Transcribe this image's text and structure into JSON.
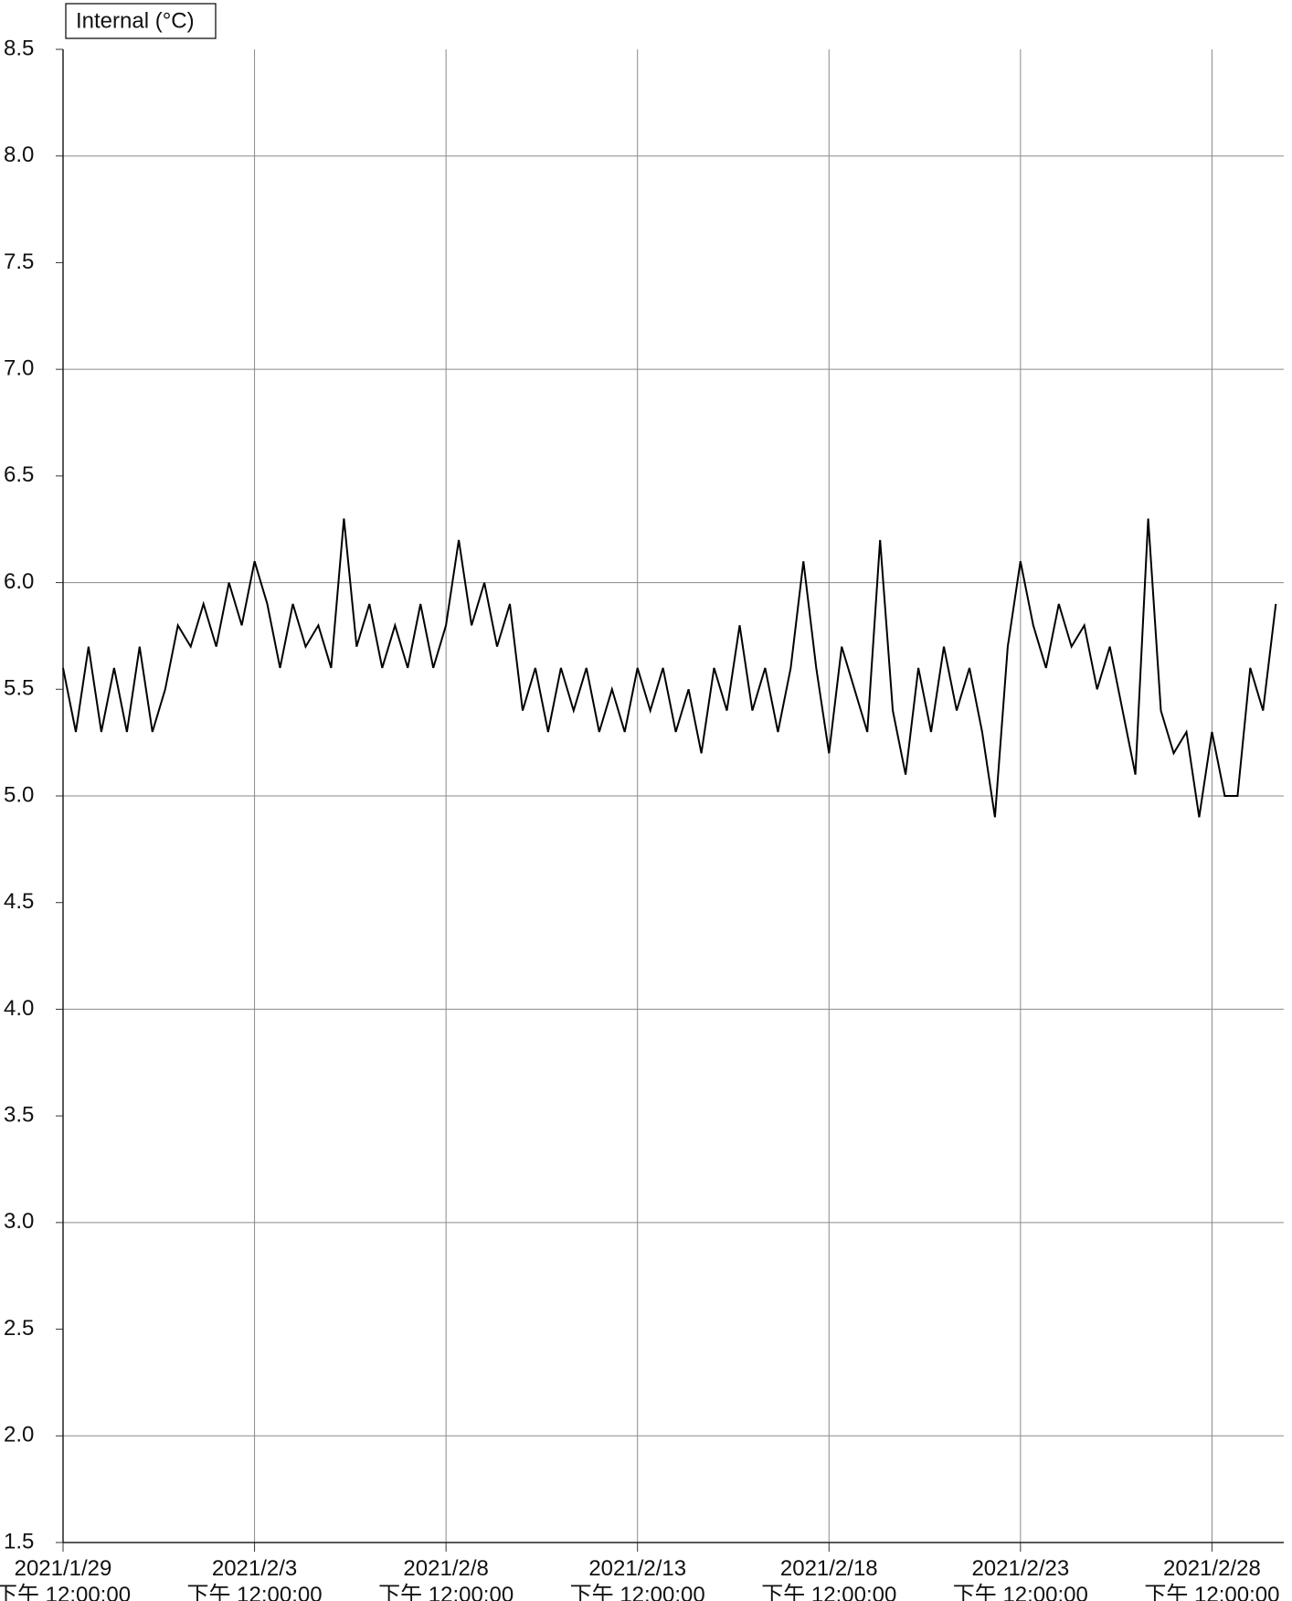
{
  "chart_data": {
    "type": "line",
    "x": [
      "2021-01-29 12:00",
      "2021-01-29 20:00",
      "2021-01-30 04:00",
      "2021-01-30 12:00",
      "2021-01-30 20:00",
      "2021-01-31 04:00",
      "2021-01-31 12:00",
      "2021-01-31 20:00",
      "2021-02-01 04:00",
      "2021-02-01 12:00",
      "2021-02-01 20:00",
      "2021-02-02 04:00",
      "2021-02-02 12:00",
      "2021-02-02 20:00",
      "2021-02-03 04:00",
      "2021-02-03 12:00",
      "2021-02-03 20:00",
      "2021-02-04 04:00",
      "2021-02-04 12:00",
      "2021-02-04 20:00",
      "2021-02-05 04:00",
      "2021-02-05 12:00",
      "2021-02-05 20:00",
      "2021-02-06 04:00",
      "2021-02-06 12:00",
      "2021-02-06 20:00",
      "2021-02-07 04:00",
      "2021-02-07 12:00",
      "2021-02-07 20:00",
      "2021-02-08 04:00",
      "2021-02-08 12:00",
      "2021-02-08 20:00",
      "2021-02-09 04:00",
      "2021-02-09 12:00",
      "2021-02-09 20:00",
      "2021-02-10 04:00",
      "2021-02-10 12:00",
      "2021-02-10 20:00",
      "2021-02-11 04:00",
      "2021-02-11 12:00",
      "2021-02-11 20:00",
      "2021-02-12 04:00",
      "2021-02-12 12:00",
      "2021-02-12 20:00",
      "2021-02-13 04:00",
      "2021-02-13 12:00",
      "2021-02-13 20:00",
      "2021-02-14 04:00",
      "2021-02-14 12:00",
      "2021-02-14 20:00",
      "2021-02-15 04:00",
      "2021-02-15 12:00",
      "2021-02-15 20:00",
      "2021-02-16 04:00",
      "2021-02-16 12:00",
      "2021-02-16 20:00",
      "2021-02-17 04:00",
      "2021-02-17 12:00",
      "2021-02-17 20:00",
      "2021-02-18 04:00",
      "2021-02-18 12:00",
      "2021-02-18 20:00",
      "2021-02-19 04:00",
      "2021-02-19 12:00",
      "2021-02-19 20:00",
      "2021-02-20 04:00",
      "2021-02-20 12:00",
      "2021-02-20 20:00",
      "2021-02-21 04:00",
      "2021-02-21 12:00",
      "2021-02-21 20:00",
      "2021-02-22 04:00",
      "2021-02-22 12:00",
      "2021-02-22 20:00",
      "2021-02-23 04:00",
      "2021-02-23 12:00",
      "2021-02-23 20:00",
      "2021-02-24 04:00",
      "2021-02-24 12:00",
      "2021-02-24 20:00",
      "2021-02-25 04:00",
      "2021-02-25 12:00",
      "2021-02-25 20:00",
      "2021-02-26 04:00",
      "2021-02-26 12:00",
      "2021-02-26 20:00",
      "2021-02-27 04:00",
      "2021-02-27 12:00",
      "2021-02-27 20:00",
      "2021-02-28 04:00",
      "2021-02-28 12:00",
      "2021-02-28 20:00",
      "2021-03-01 04:00",
      "2021-03-01 12:00",
      "2021-03-01 20:00",
      "2021-03-02 04:00"
    ],
    "series": [
      {
        "name": "Internal (°C)",
        "color": "#000000",
        "values": [
          5.6,
          5.3,
          5.7,
          5.3,
          5.6,
          5.3,
          5.7,
          5.3,
          5.5,
          5.8,
          5.7,
          5.9,
          5.7,
          6.0,
          5.8,
          6.1,
          5.9,
          5.6,
          5.9,
          5.7,
          5.8,
          5.6,
          6.3,
          5.7,
          5.9,
          5.6,
          5.8,
          5.6,
          5.9,
          5.6,
          5.8,
          6.2,
          5.8,
          6.0,
          5.7,
          5.9,
          5.4,
          5.6,
          5.3,
          5.6,
          5.4,
          5.6,
          5.3,
          5.5,
          5.3,
          5.6,
          5.4,
          5.6,
          5.3,
          5.5,
          5.2,
          5.6,
          5.4,
          5.8,
          5.4,
          5.6,
          5.3,
          5.6,
          6.1,
          5.6,
          5.2,
          5.7,
          5.5,
          5.3,
          6.2,
          5.4,
          5.1,
          5.6,
          5.3,
          5.7,
          5.4,
          5.6,
          5.3,
          4.9,
          5.7,
          6.1,
          5.8,
          5.6,
          5.9,
          5.7,
          5.8,
          5.5,
          5.7,
          5.4,
          5.1,
          6.3,
          5.4,
          5.2,
          5.3,
          4.9,
          5.3,
          5.0,
          5.0,
          5.6,
          5.4,
          5.9
        ]
      }
    ],
    "xlim": [
      "2021-01-29 12:00",
      "2021-03-02 09:00"
    ],
    "xticks": [
      {
        "value": "2021-01-29 12:00",
        "label": [
          "2021/1/29",
          "下午 12:00:00"
        ]
      },
      {
        "value": "2021-02-03 12:00",
        "label": [
          "2021/2/3",
          "下午 12:00:00"
        ]
      },
      {
        "value": "2021-02-08 12:00",
        "label": [
          "2021/2/8",
          "下午 12:00:00"
        ]
      },
      {
        "value": "2021-02-13 12:00",
        "label": [
          "2021/2/13",
          "下午 12:00:00"
        ]
      },
      {
        "value": "2021-02-18 12:00",
        "label": [
          "2021/2/18",
          "下午 12:00:00"
        ]
      },
      {
        "value": "2021-02-23 12:00",
        "label": [
          "2021/2/23",
          "下午 12:00:00"
        ]
      },
      {
        "value": "2021-02-28 12:00",
        "label": [
          "2021/2/28",
          "下午 12:00:00"
        ]
      }
    ],
    "ylim": [
      1.5,
      8.5
    ],
    "yticks": [
      {
        "value": 1.5,
        "label": "1.5"
      },
      {
        "value": 2,
        "label": "2.0"
      },
      {
        "value": 2.5,
        "label": "2.5"
      },
      {
        "value": 3,
        "label": "3.0"
      },
      {
        "value": 3.5,
        "label": "3.5"
      },
      {
        "value": 4,
        "label": "4.0"
      },
      {
        "value": 4.5,
        "label": "4.5"
      },
      {
        "value": 5,
        "label": "5.0"
      },
      {
        "value": 5.5,
        "label": "5.5"
      },
      {
        "value": 6,
        "label": "6.0"
      },
      {
        "value": 6.5,
        "label": "6.5"
      },
      {
        "value": 7,
        "label": "7.0"
      },
      {
        "value": 7.5,
        "label": "7.5"
      },
      {
        "value": 8,
        "label": "8.0"
      },
      {
        "value": 8.5,
        "label": "8.5"
      }
    ],
    "grid": true
  }
}
